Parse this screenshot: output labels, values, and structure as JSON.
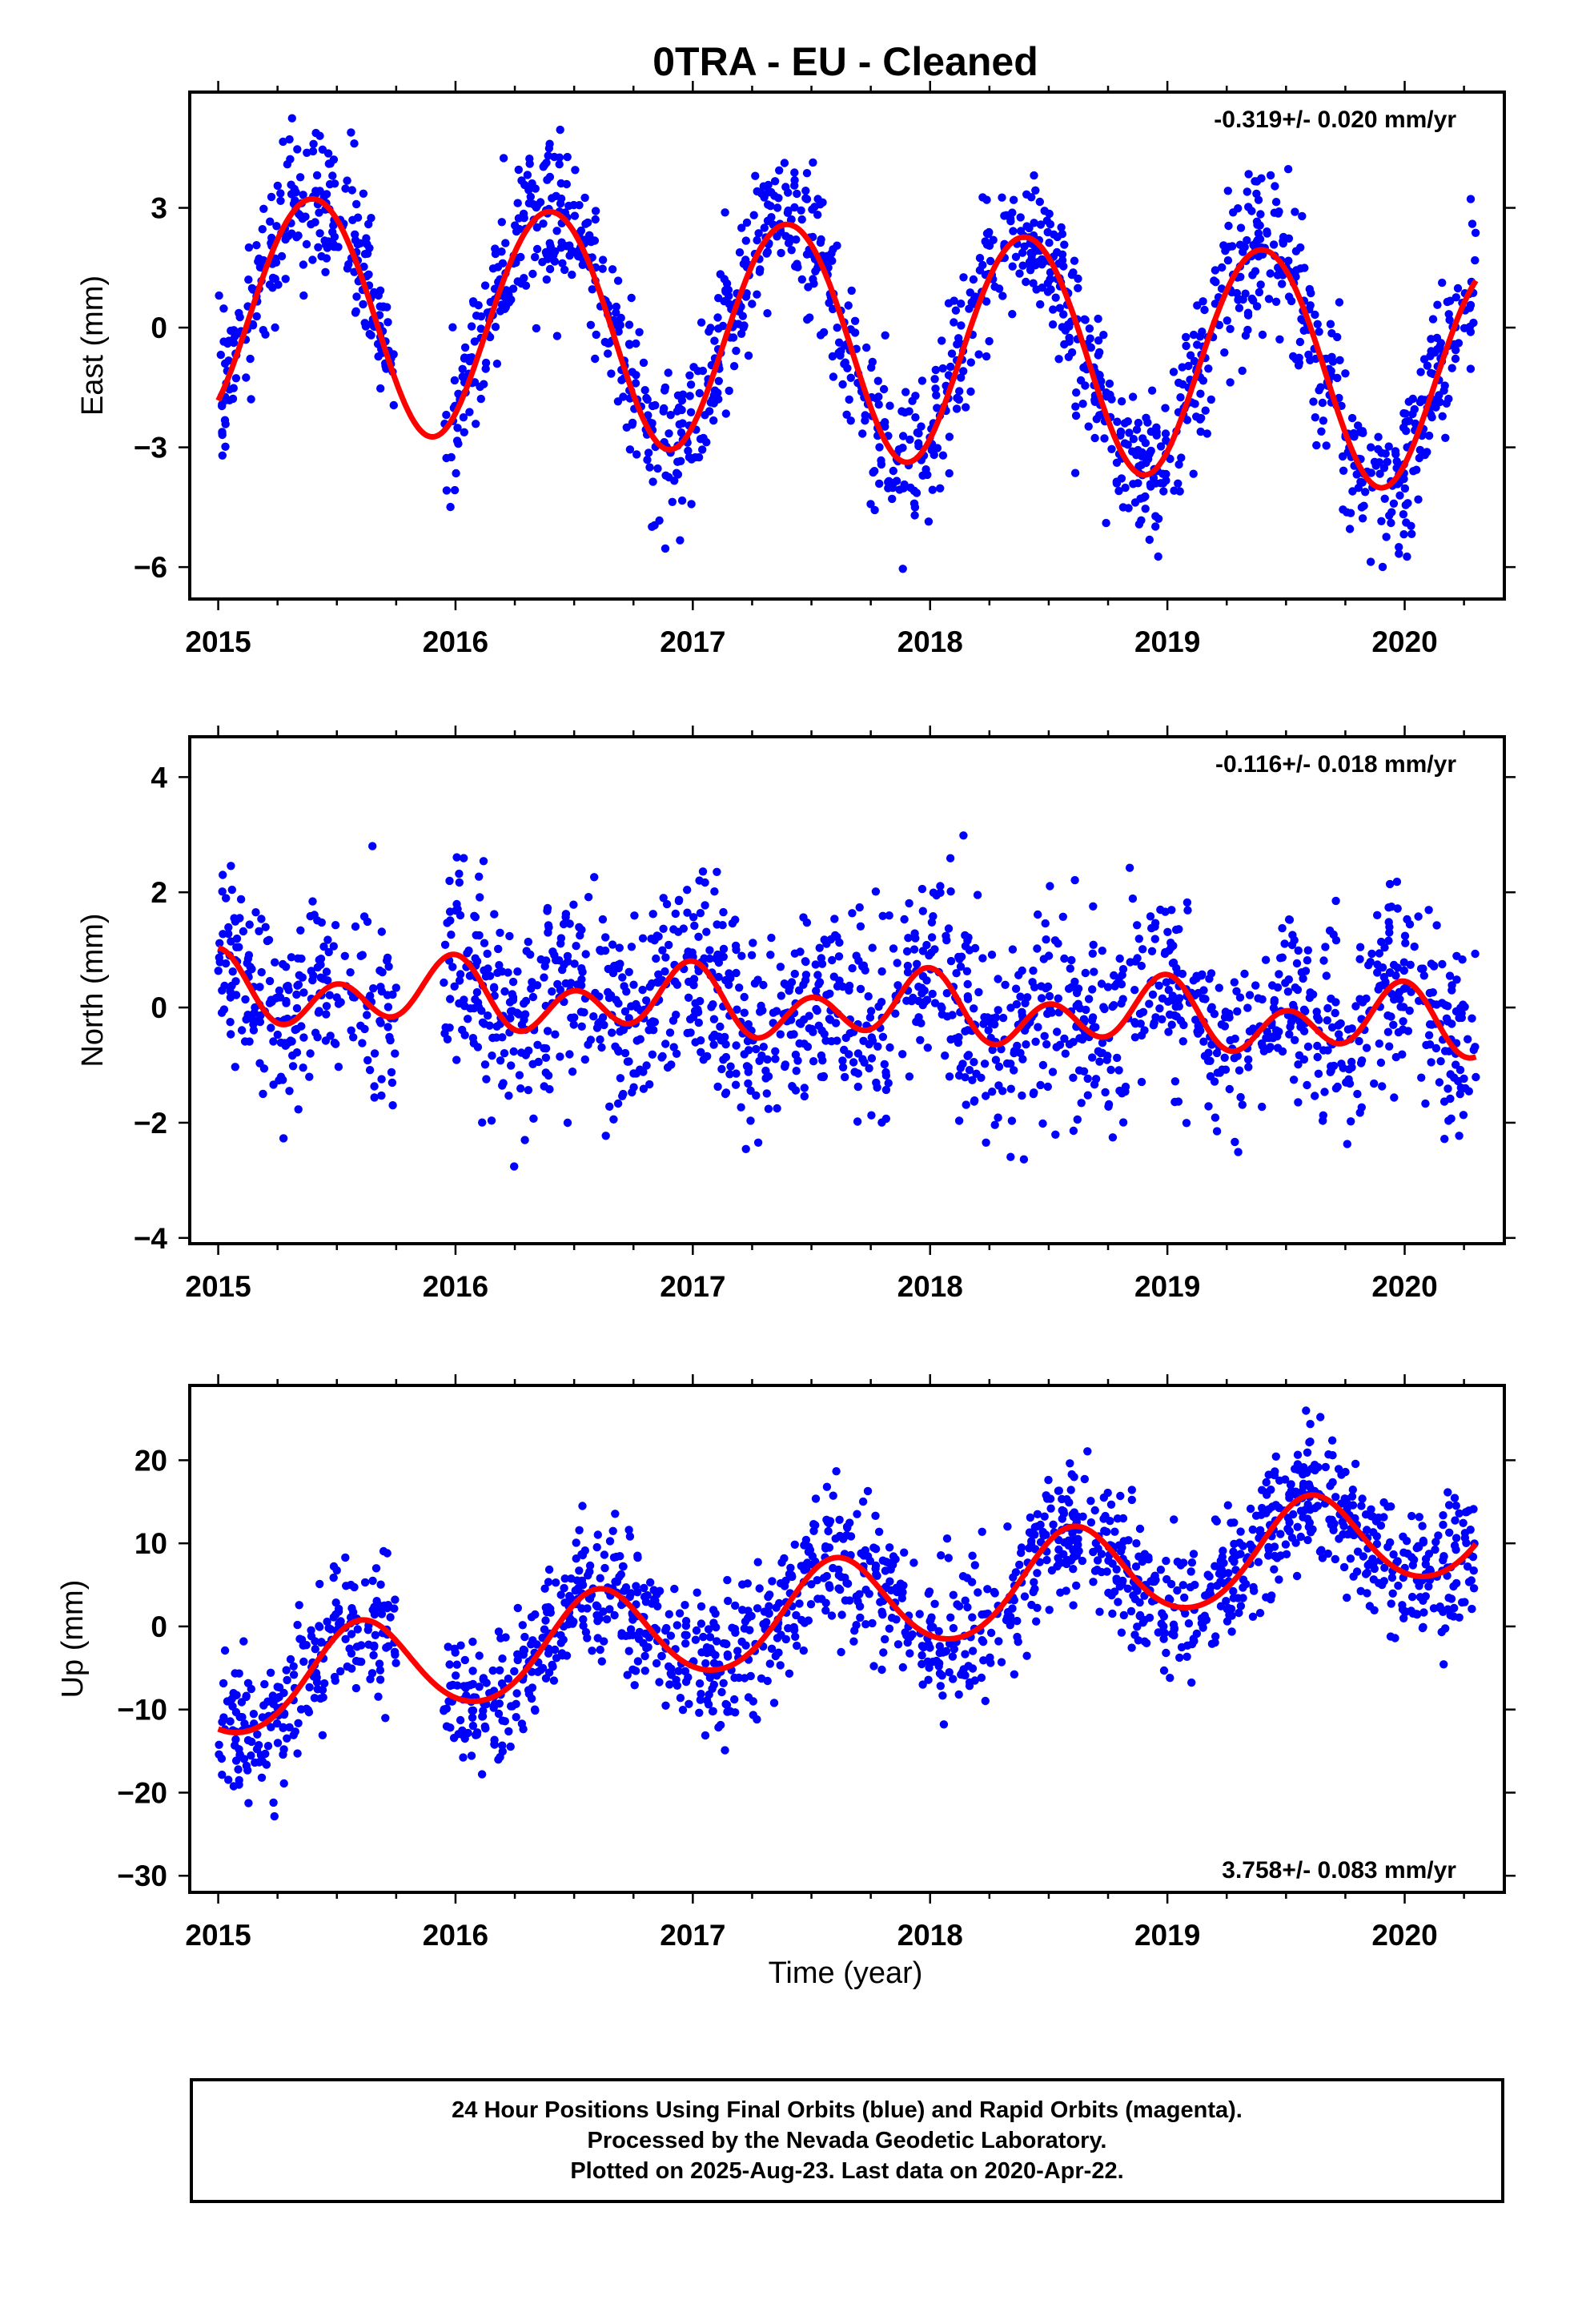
{
  "title": "0TRA  - EU - Cleaned",
  "xlabel": "Time (year)",
  "footer": {
    "line1": "24 Hour Positions Using Final Orbits (blue) and Rapid Orbits (magenta).",
    "line2": "Processed by the Nevada Geodetic Laboratory.",
    "line3": "Plotted on 2025-Aug-23. Last data on 2020-Apr-22."
  },
  "colors": {
    "points": "#0000ff",
    "model": "#ff0000",
    "axes": "#000000"
  },
  "chart_data": [
    {
      "type": "scatter",
      "name": "east",
      "ylabel": "East (mm)",
      "rate_label": "-0.319+/- 0.020 mm/yr",
      "rate_position": "top-right",
      "xlim": [
        2014.88,
        2020.42
      ],
      "ylim": [
        -6.8,
        5.9
      ],
      "x_ticks": [
        2015,
        2016,
        2017,
        2018,
        2019,
        2020
      ],
      "y_ticks": [
        -6,
        -3,
        0,
        3
      ],
      "y_tick_labels": [
        "−6",
        "−3",
        "0",
        "3"
      ],
      "model": {
        "trend_mm_per_yr": -0.319,
        "offset_at_2015": 0.55,
        "annual": {
          "amplitude": 2.9,
          "peak_year_fraction": 0.4
        },
        "semiannual": {
          "amplitude": 0.1,
          "peak_year_fraction": 0.15
        },
        "x_range": [
          2015.0,
          2020.3
        ]
      },
      "points": {
        "approx_count": 1700,
        "x_range": [
          2015.0,
          2020.3
        ],
        "scatter_sd_mm": 0.95,
        "data_gap": [
          2015.75,
          2015.95
        ]
      }
    },
    {
      "type": "scatter",
      "name": "north",
      "ylabel": "North (mm)",
      "rate_label": "-0.116+/- 0.018 mm/yr",
      "rate_position": "top-right",
      "xlim": [
        2014.88,
        2020.42
      ],
      "ylim": [
        -4.1,
        4.7
      ],
      "x_ticks": [
        2015,
        2016,
        2017,
        2018,
        2019,
        2020
      ],
      "y_ticks": [
        -4,
        -2,
        0,
        2,
        4
      ],
      "y_tick_labels": [
        "−4",
        "−2",
        "0",
        "2",
        "4"
      ],
      "model": {
        "trend_mm_per_yr": -0.116,
        "offset_at_2015": 0.3,
        "annual": {
          "amplitude": 0.3,
          "peak_year_fraction": 0.95
        },
        "semiannual": {
          "amplitude": 0.45,
          "peak_year_fraction": 0.0
        },
        "x_range": [
          2015.0,
          2020.3
        ]
      },
      "points": {
        "approx_count": 1700,
        "x_range": [
          2015.0,
          2020.3
        ],
        "scatter_sd_mm": 0.85,
        "data_gap": [
          2015.75,
          2015.95
        ]
      }
    },
    {
      "type": "scatter",
      "name": "up",
      "ylabel": "Up (mm)",
      "rate_label": "3.758+/- 0.083 mm/yr",
      "rate_position": "bottom-right",
      "xlim": [
        2014.88,
        2020.42
      ],
      "ylim": [
        -32,
        29
      ],
      "x_ticks": [
        2015,
        2016,
        2017,
        2018,
        2019,
        2020
      ],
      "y_ticks": [
        -30,
        -20,
        -10,
        0,
        10,
        20
      ],
      "y_tick_labels": [
        "−30",
        "−20",
        "−10",
        "0",
        "10",
        "20"
      ],
      "model": {
        "trend_mm_per_yr": 3.758,
        "offset_at_2015": -7.8,
        "annual": {
          "amplitude": 5.8,
          "peak_year_fraction": 0.6
        },
        "semiannual": {
          "amplitude": 0.5,
          "peak_year_fraction": 0.1
        },
        "x_range": [
          2015.0,
          2020.3
        ]
      },
      "points": {
        "approx_count": 1700,
        "x_range": [
          2015.0,
          2020.3
        ],
        "scatter_sd_mm": 4.0,
        "data_gap": [
          2015.75,
          2015.95
        ]
      }
    }
  ]
}
